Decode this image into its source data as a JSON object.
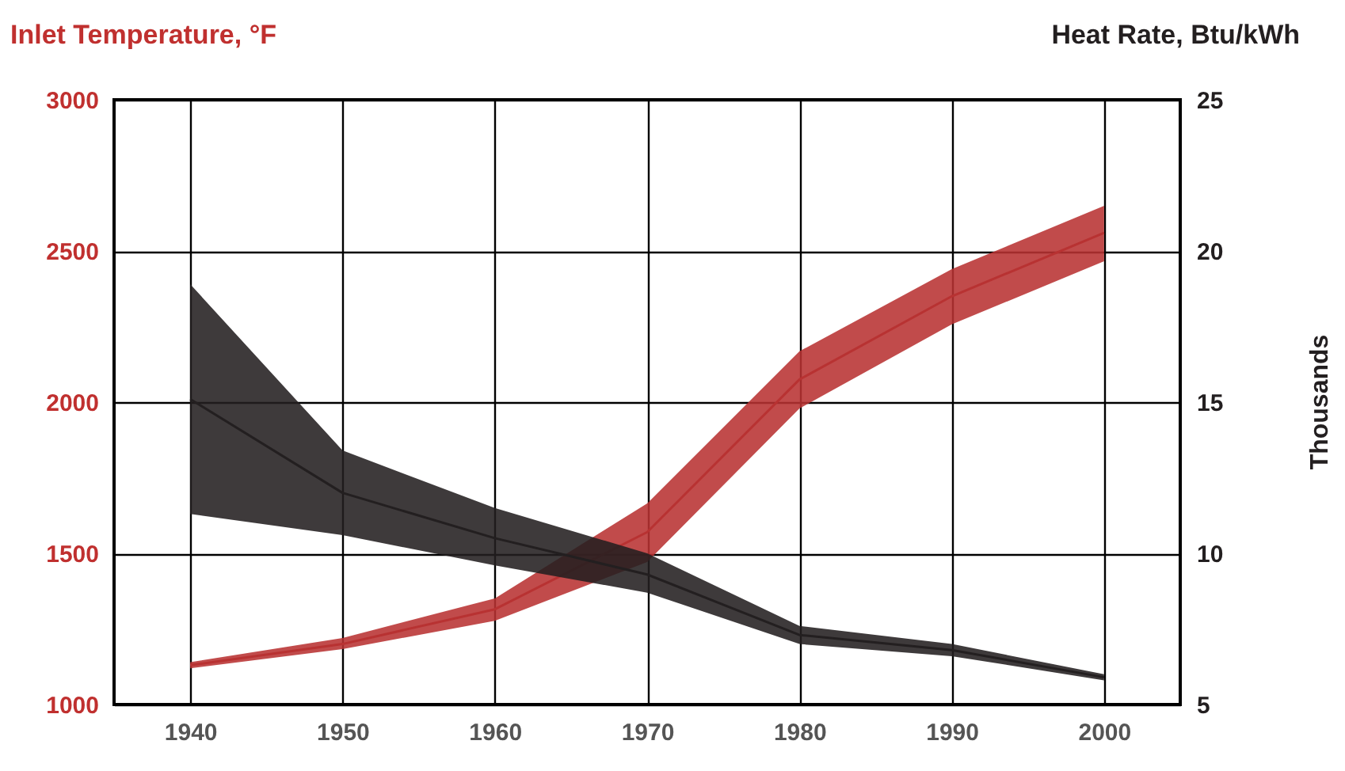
{
  "chart_data": {
    "type": "line",
    "ylabel": "Inlet Temperature, °F",
    "y2label": "Heat Rate, Btu/kWh",
    "annotations": [
      "Thousands"
    ],
    "categories": [
      "1940",
      "1950",
      "1960",
      "1970",
      "1980",
      "1990",
      "2000"
    ],
    "ylim": [
      1000,
      3000
    ],
    "yticks": [
      1000,
      1500,
      2000,
      2500,
      3000
    ],
    "y2lim": [
      5,
      25
    ],
    "y2ticks": [
      5,
      10,
      15,
      20,
      25
    ],
    "grid": true,
    "series": [
      {
        "color": "#b83232",
        "values": [
          1130,
          1200,
          1315,
          1570,
          2075,
          2350,
          2560
        ],
        "lower": [
          1120,
          1183,
          1277,
          1471,
          1979,
          2257,
          2466
        ],
        "upper": [
          1140,
          1220,
          1351,
          1665,
          2168,
          2440,
          2649
        ]
      },
      {
        "color": "#231f20",
        "axis": "y2",
        "values": [
          15.1,
          12.0,
          10.5,
          9.3,
          7.3,
          6.8,
          5.9
        ],
        "lower": [
          11.3,
          10.6,
          9.6,
          8.7,
          7.0,
          6.6,
          5.8
        ],
        "upper": [
          18.9,
          13.4,
          11.5,
          10.0,
          7.6,
          7.0,
          6.0
        ]
      }
    ]
  }
}
